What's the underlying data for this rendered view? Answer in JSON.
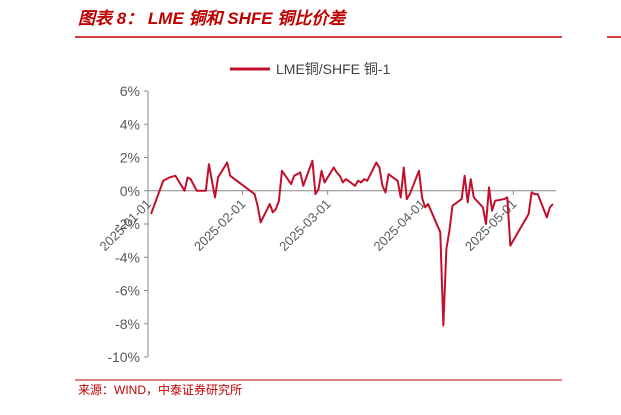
{
  "chart_data": {
    "type": "line",
    "title": "图表 8： LME 铜和 SHFE 铜比价差",
    "source": "来源：WIND，中泰证券研究所",
    "x": [
      "2025-01-02",
      "2025-01-03",
      "2025-01-06",
      "2025-01-08",
      "2025-01-10",
      "2025-01-13",
      "2025-01-14",
      "2025-01-15",
      "2025-01-17",
      "2025-01-20",
      "2025-01-21",
      "2025-01-23",
      "2025-01-24",
      "2025-01-27",
      "2025-01-28",
      "2025-02-05",
      "2025-02-06",
      "2025-02-07",
      "2025-02-10",
      "2025-02-11",
      "2025-02-12",
      "2025-02-13",
      "2025-02-14",
      "2025-02-17",
      "2025-02-18",
      "2025-02-19",
      "2025-02-20",
      "2025-02-21",
      "2025-02-24",
      "2025-02-25",
      "2025-02-26",
      "2025-02-27",
      "2025-02-28",
      "2025-03-03",
      "2025-03-04",
      "2025-03-05",
      "2025-03-06",
      "2025-03-07",
      "2025-03-10",
      "2025-03-11",
      "2025-03-12",
      "2025-03-13",
      "2025-03-14",
      "2025-03-17",
      "2025-03-18",
      "2025-03-19",
      "2025-03-20",
      "2025-03-21",
      "2025-03-24",
      "2025-03-25",
      "2025-03-26",
      "2025-03-27",
      "2025-03-28",
      "2025-03-31",
      "2025-04-01",
      "2025-04-02",
      "2025-04-03",
      "2025-04-07",
      "2025-04-08",
      "2025-04-09",
      "2025-04-10",
      "2025-04-11",
      "2025-04-14",
      "2025-04-15",
      "2025-04-16",
      "2025-04-17",
      "2025-04-18",
      "2025-04-21",
      "2025-04-22",
      "2025-04-23",
      "2025-04-24",
      "2025-04-25",
      "2025-04-28",
      "2025-04-29",
      "2025-04-30",
      "2025-05-06",
      "2025-05-07",
      "2025-05-08",
      "2025-05-09",
      "2025-05-12",
      "2025-05-13",
      "2025-05-14"
    ],
    "series": [
      {
        "name": "LME铜/SHFE 铜-1",
        "color": "#c0102c",
        "values": [
          -1.4,
          -0.9,
          0.6,
          0.8,
          0.9,
          0.0,
          0.8,
          0.7,
          0.0,
          0.0,
          1.6,
          -0.4,
          0.8,
          1.7,
          0.9,
          -0.2,
          -0.9,
          -1.9,
          -0.8,
          -1.3,
          -1.1,
          -0.6,
          1.2,
          0.4,
          0.9,
          1.0,
          1.1,
          0.3,
          1.8,
          -0.2,
          0.1,
          1.2,
          0.5,
          1.4,
          1.1,
          0.9,
          0.5,
          0.7,
          0.3,
          0.6,
          0.5,
          0.7,
          0.6,
          1.7,
          1.4,
          0.3,
          -0.1,
          1.0,
          0.6,
          -0.4,
          1.4,
          -0.5,
          -0.2,
          1.2,
          -0.4,
          -1.0,
          -0.8,
          -2.5,
          -8.1,
          -3.5,
          -2.4,
          -0.9,
          -0.5,
          0.9,
          -0.7,
          0.7,
          -0.4,
          -1.0,
          -2.0,
          0.2,
          -1.2,
          -0.6,
          -0.5,
          -0.4,
          -3.3,
          -1.4,
          -0.1,
          -0.2,
          -0.2,
          -1.6,
          -1.0,
          -0.8
        ]
      }
    ],
    "xlim": [
      "2025-01-01",
      "2025-05-15"
    ],
    "xticks": [
      "2025-01-01",
      "2025-02-01",
      "2025-03-01",
      "2025-04-01",
      "2025-05-01"
    ],
    "ylim": [
      -10,
      6
    ],
    "yticks": [
      {
        "value": -10,
        "label": "-10%"
      },
      {
        "value": -8,
        "label": "-8%"
      },
      {
        "value": -6,
        "label": "-6%"
      },
      {
        "value": -4,
        "label": "-4%"
      },
      {
        "value": -2,
        "label": "-2%"
      },
      {
        "value": 0,
        "label": "0%"
      },
      {
        "value": 2,
        "label": "2%"
      },
      {
        "value": 4,
        "label": "4%"
      },
      {
        "value": 6,
        "label": "6%"
      }
    ],
    "legend": "top"
  }
}
